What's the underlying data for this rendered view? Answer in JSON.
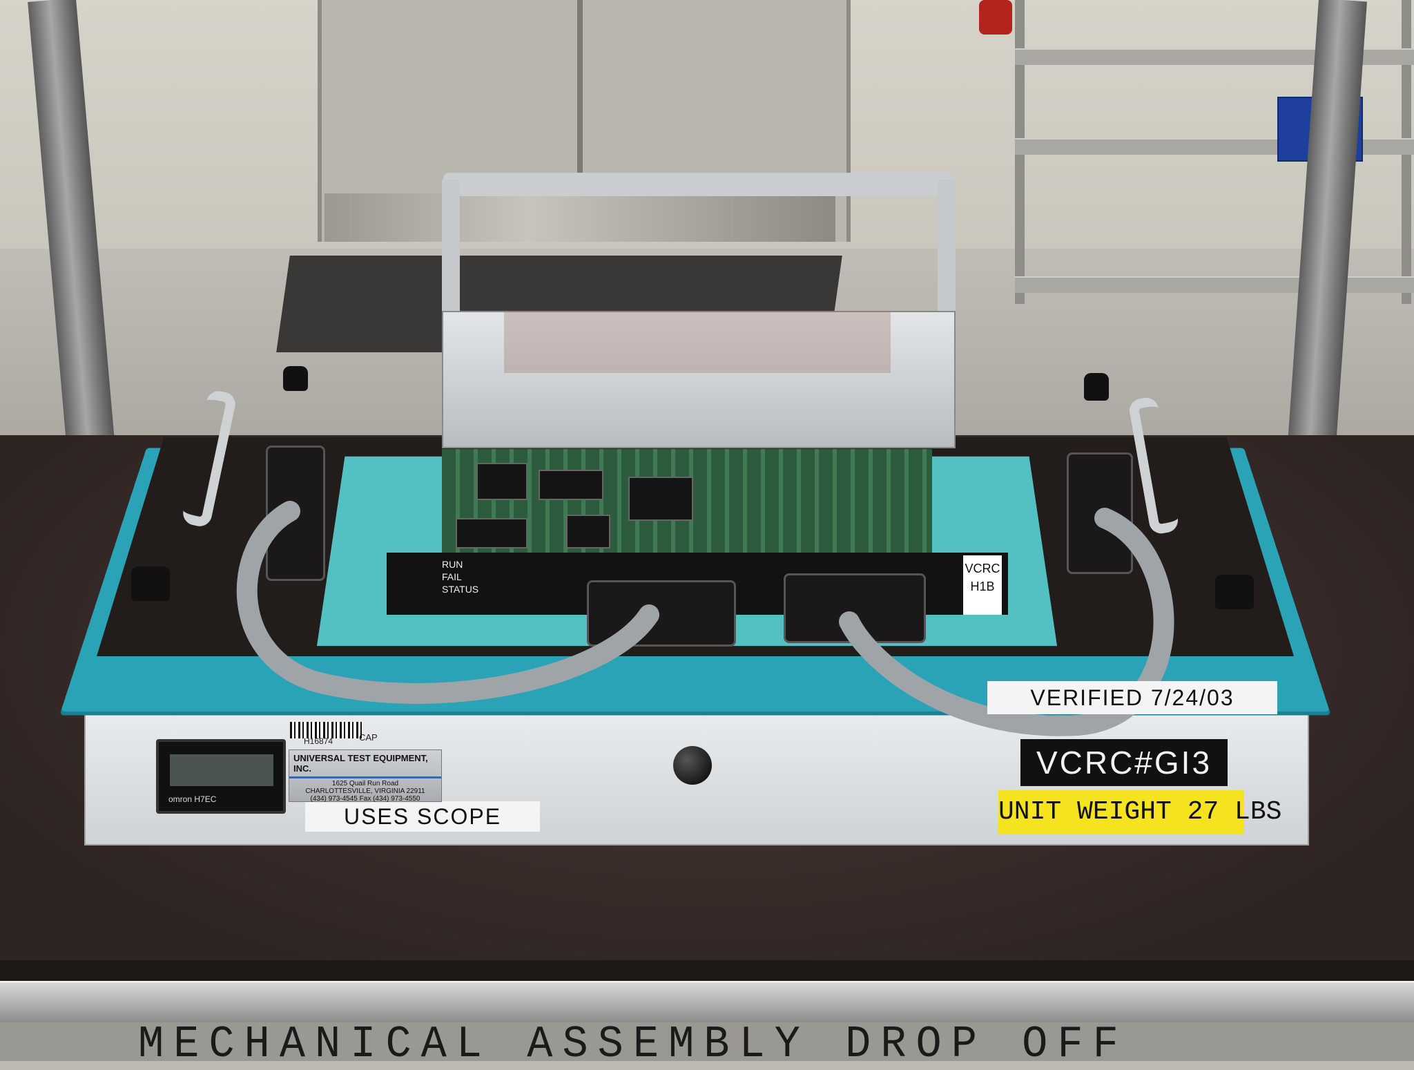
{
  "scene": {
    "floor_marking": "MECHANICAL ASSEMBLY DROP OFF"
  },
  "fixture": {
    "verified_label": "VERIFIED 7/24/03",
    "unit_id_label": "VCRC#GI3",
    "weight_label": "UNIT WEIGHT 27 LBS",
    "scope_label": "USES SCOPE",
    "board_tag": "VCRC H1B",
    "board_leds": [
      "RUN",
      "FAIL",
      "STATUS"
    ],
    "timer_brand": "omron H7EC"
  },
  "manufacturer_plate": {
    "company": "UNIVERSAL TEST EQUIPMENT, INC.",
    "address_line1": "1625 Quail Run Road",
    "address_line2": "CHARLOTTESVILLE, VIRGINIA 22911",
    "phone": "(434) 973-4545",
    "fax": "Fax (434) 973-4550",
    "asset_tag": "H16874",
    "asset_suffix": "CAP"
  },
  "colors": {
    "lid_teal": "#2aa3b6",
    "pad_teal": "#53c0c4",
    "weight_label_yellow": "#f4e31e",
    "id_label_black": "#111111"
  }
}
